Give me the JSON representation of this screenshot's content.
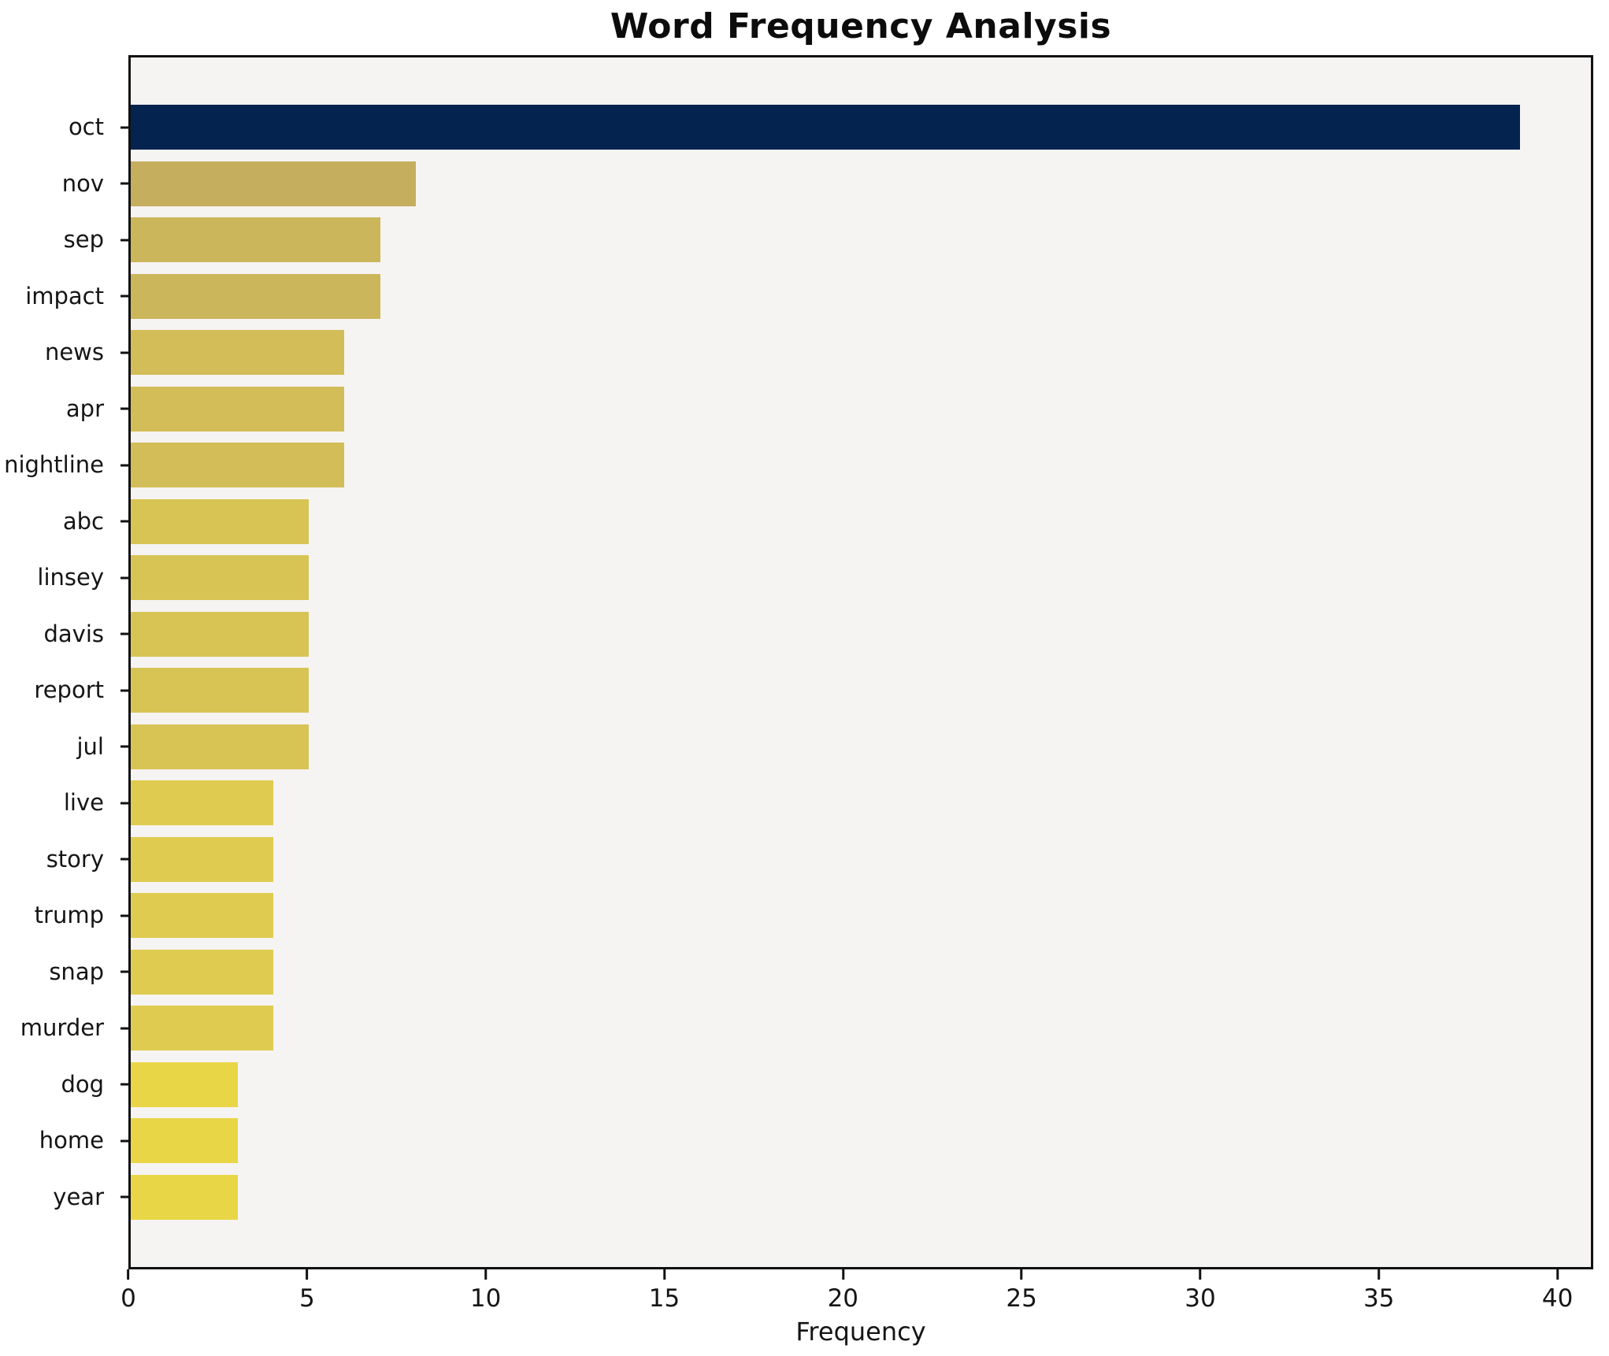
{
  "chart_data": {
    "type": "bar",
    "orientation": "horizontal",
    "title": "Word Frequency Analysis",
    "xlabel": "Frequency",
    "ylabel": "",
    "categories": [
      "oct",
      "nov",
      "sep",
      "impact",
      "news",
      "apr",
      "nightline",
      "abc",
      "linsey",
      "davis",
      "report",
      "jul",
      "live",
      "story",
      "trump",
      "snap",
      "murder",
      "dog",
      "home",
      "year"
    ],
    "values": [
      39,
      8,
      7,
      7,
      6,
      6,
      6,
      5,
      5,
      5,
      5,
      5,
      4,
      4,
      4,
      4,
      4,
      3,
      3,
      3
    ],
    "bar_colors": [
      "#04234e",
      "#c6ae5f",
      "#ccb65c",
      "#ccb65c",
      "#d2bd58",
      "#d2bd58",
      "#d2bd58",
      "#d8c455",
      "#d8c455",
      "#d8c455",
      "#d8c455",
      "#d8c455",
      "#dfcb50",
      "#dfcb50",
      "#dfcb50",
      "#dfcb50",
      "#dfcb50",
      "#e9d647",
      "#e9d647",
      "#e9d647"
    ],
    "xlim": [
      0,
      41
    ],
    "xticks": [
      0,
      5,
      10,
      15,
      20,
      25,
      30,
      35,
      40
    ],
    "grid": false,
    "legend": "none",
    "plot_background": "#f5f4f2",
    "figure_background": "#ffffff",
    "accent_color_high": "#04234e",
    "accent_color_low": "#e9d647"
  }
}
